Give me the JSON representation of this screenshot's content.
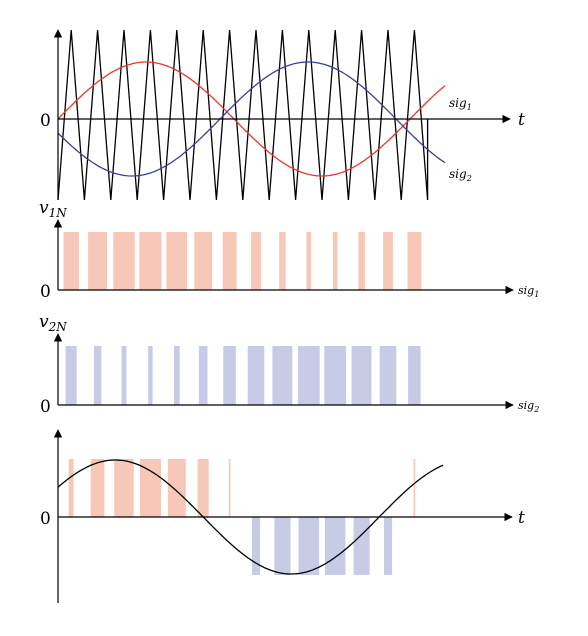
{
  "panels": {
    "carrier": {
      "zero_label": "0",
      "time_label": "t",
      "sig1_label": "sig",
      "sig1_sub": "1",
      "sig2_label": "sig",
      "sig2_sub": "2"
    },
    "v1n": {
      "y_label": "v",
      "y_sub": "1N",
      "zero_label": "0",
      "x_label": "sig",
      "x_sub": "1"
    },
    "v2n": {
      "y_label": "v",
      "y_sub": "2N",
      "zero_label": "0",
      "x_label": "sig",
      "x_sub": "2"
    },
    "output": {
      "zero_label": "0",
      "time_label": "t"
    }
  },
  "colors": {
    "sig1": "#e8382a",
    "sig2": "#3a3f9a",
    "pulse1": "#f7c8b8",
    "pulse2": "#c7cbe6",
    "axis": "#000000"
  }
}
